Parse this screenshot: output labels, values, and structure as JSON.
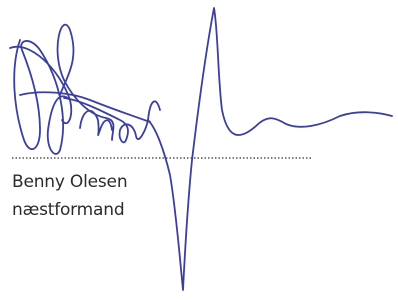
{
  "signature_block": {
    "name": "Benny Olesen",
    "role": "næstformand"
  }
}
